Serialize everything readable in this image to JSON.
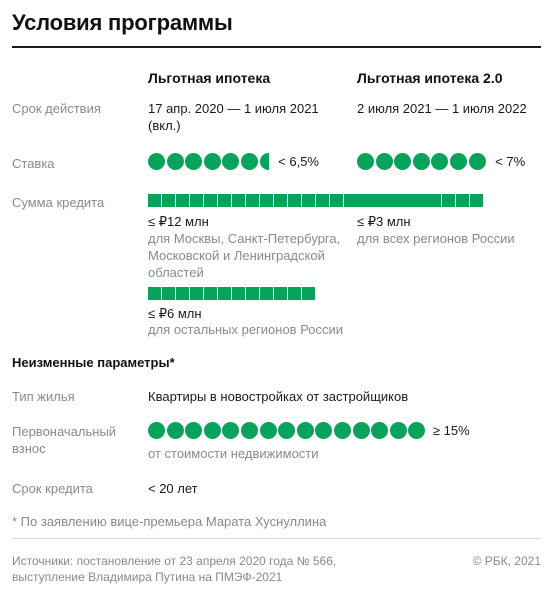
{
  "title": "Условия программы",
  "columns": [
    "Льготная ипотека",
    "Льготная ипотека 2.0"
  ],
  "rows": {
    "period": {
      "label": "Срок действия",
      "p1": "17 апр. 2020 — 1 июля 2021 (вкл.)",
      "p2": "2 июля 2021 — 1 июля 2022"
    },
    "rate": {
      "label": "Ставка",
      "p1": "< 6,5%",
      "p2": "< 7%",
      "p1_value": 6.5,
      "p2_value": 7
    },
    "amount": {
      "label": "Сумма кредита",
      "p1_main": "≤ ₽12 млн",
      "p1_main_note": "для Москвы, Санкт-Петербурга, Московской и Ленинградской областей",
      "p1_main_value": 12,
      "p1_other": "≤ ₽6 млн",
      "p1_other_note": "для остальных регионов России",
      "p1_other_value": 6,
      "p2": "≤ ₽3 млн",
      "p2_note": "для всех регионов России",
      "p2_value": 3
    }
  },
  "unchanged": {
    "title": "Неизменные параметры*",
    "housing": {
      "label": "Тип жилья",
      "value": "Квартиры в новостройках от застройщиков"
    },
    "down": {
      "label": "Первоначальный взнос",
      "value": "≥ 15%",
      "note": "от стоимости недвижимости",
      "value_num": 15
    },
    "term": {
      "label": "Срок кредита",
      "value": "< 20 лет"
    }
  },
  "footnote": "* По заявлению вице-премьера Марата Хуснуллина",
  "sources": "Источники: постановление от 23 апреля 2020 года № 566, выступление Владимира Путина на ПМЭФ-2021",
  "copyright": "© РБК, 2021",
  "colors": {
    "accent": "#07A35A",
    "label": "#8a8a8a",
    "text": "#1a1a1a"
  }
}
